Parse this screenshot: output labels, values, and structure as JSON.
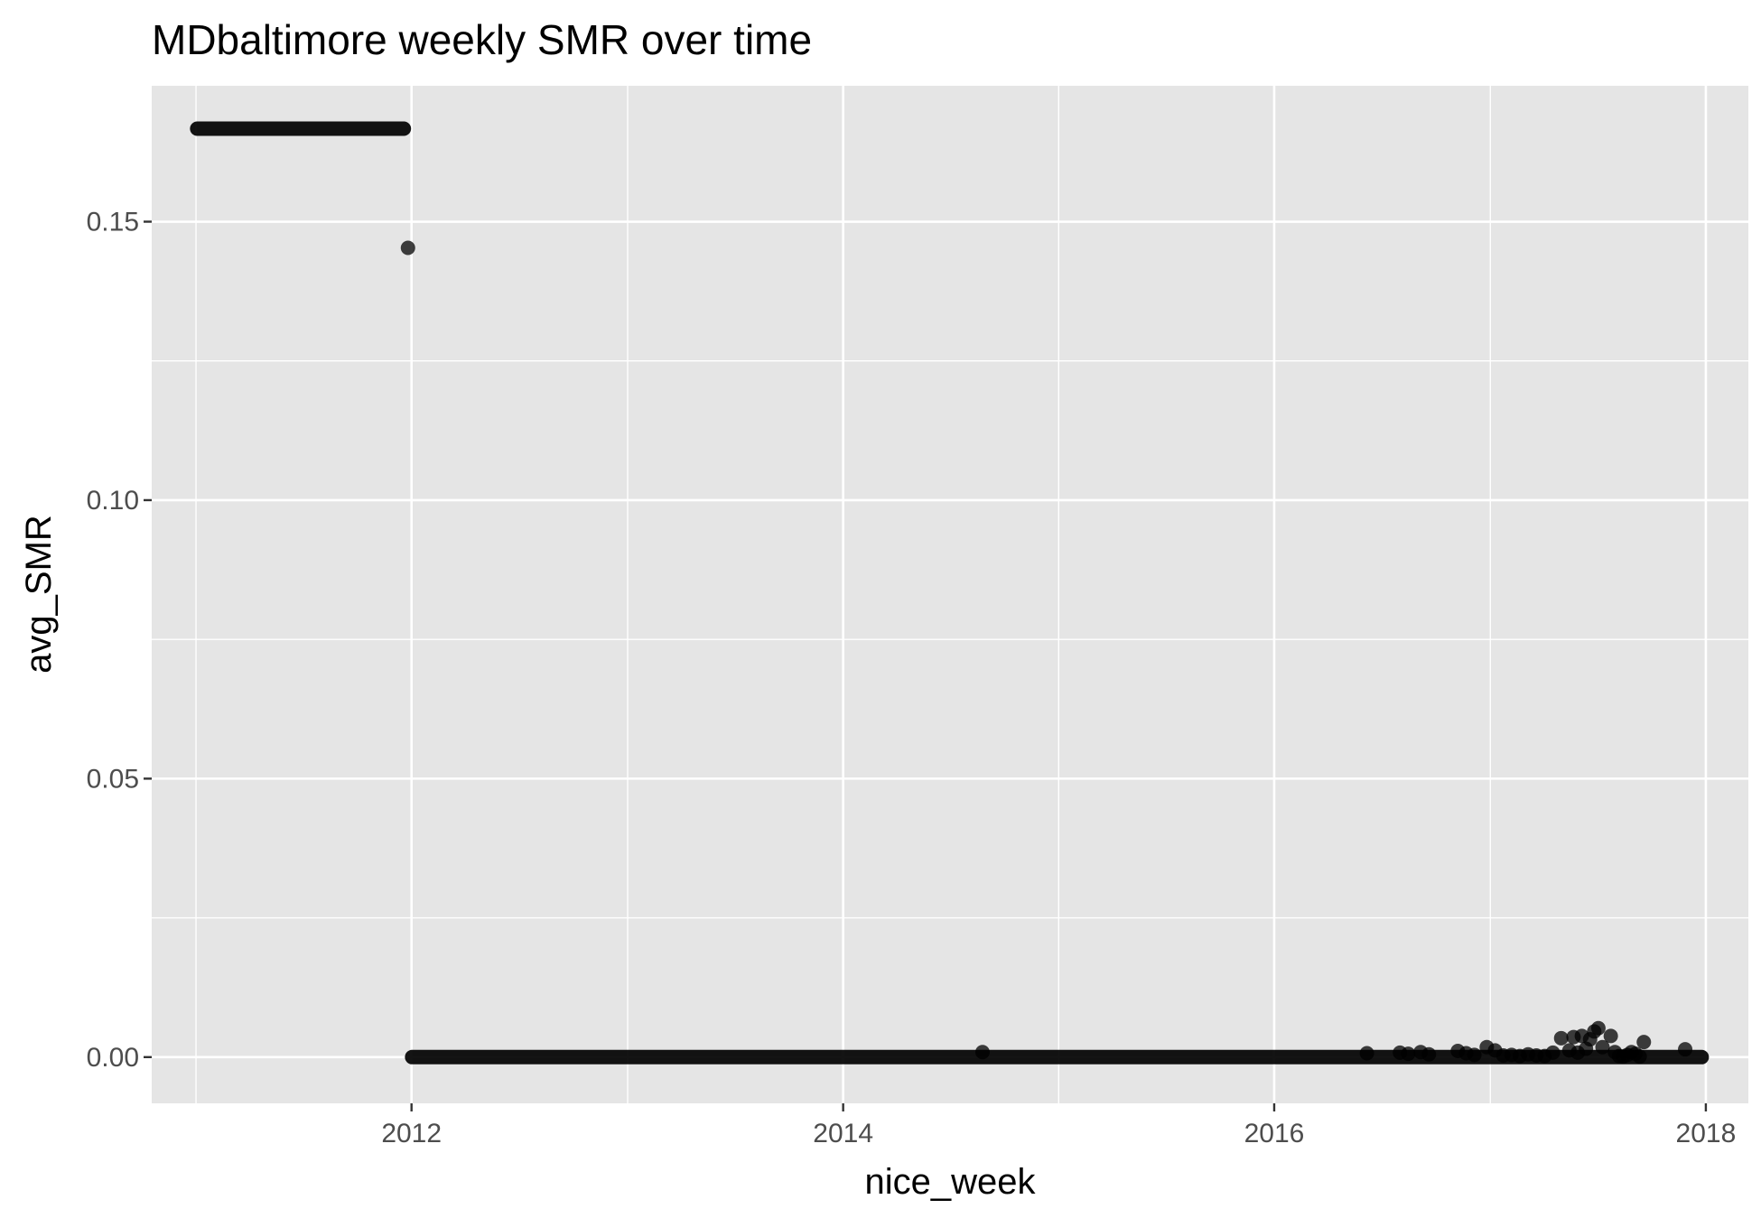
{
  "chart_data": {
    "type": "scatter",
    "title": "MDbaltimore weekly SMR over time",
    "xlabel": "nice_week",
    "ylabel": "avg_SMR",
    "x_ticks": [
      "2012",
      "2014",
      "2016",
      "2018"
    ],
    "y_ticks": [
      "0.00",
      "0.05",
      "0.10",
      "0.15"
    ],
    "xlim": [
      "2010-10-18",
      "2018-03-14"
    ],
    "ylim": [
      -0.0083,
      0.1744
    ],
    "grid": true,
    "legend": "none",
    "colors": {
      "panel": "#e5e5e5",
      "grid": "#ffffff",
      "point": "#000000",
      "point_opacity": 0.75
    },
    "segments": [
      {
        "from": "2011-01-03",
        "to": "2011-12-19",
        "y": 0.1667
      },
      {
        "from": "2012-01-02",
        "to": "2017-12-25",
        "y": 0.0
      }
    ],
    "points": [
      {
        "x": "2011-12-26",
        "y": 0.1453
      },
      {
        "x": "2014-08-25",
        "y": 0.0009
      },
      {
        "x": "2016-06-06",
        "y": 0.0007
      },
      {
        "x": "2016-08-01",
        "y": 0.0008
      },
      {
        "x": "2016-08-15",
        "y": 0.0006
      },
      {
        "x": "2016-09-05",
        "y": 0.0009
      },
      {
        "x": "2016-09-19",
        "y": 0.0005
      },
      {
        "x": "2016-11-07",
        "y": 0.0011
      },
      {
        "x": "2016-11-21",
        "y": 0.0007
      },
      {
        "x": "2016-12-05",
        "y": 0.0004
      },
      {
        "x": "2016-12-26",
        "y": 0.0018
      },
      {
        "x": "2017-01-09",
        "y": 0.0012
      },
      {
        "x": "2017-01-23",
        "y": 0.0003
      },
      {
        "x": "2017-02-06",
        "y": 0.0004
      },
      {
        "x": "2017-02-20",
        "y": 0.0002
      },
      {
        "x": "2017-03-06",
        "y": 0.0005
      },
      {
        "x": "2017-03-20",
        "y": 0.0003
      },
      {
        "x": "2017-04-03",
        "y": 0.0002
      },
      {
        "x": "2017-04-17",
        "y": 0.0008
      },
      {
        "x": "2017-05-01",
        "y": 0.0034
      },
      {
        "x": "2017-05-15",
        "y": 0.0012
      },
      {
        "x": "2017-05-22",
        "y": 0.0036
      },
      {
        "x": "2017-05-29",
        "y": 0.0008
      },
      {
        "x": "2017-06-05",
        "y": 0.0038
      },
      {
        "x": "2017-06-12",
        "y": 0.0015
      },
      {
        "x": "2017-06-19",
        "y": 0.0032
      },
      {
        "x": "2017-06-26",
        "y": 0.0046
      },
      {
        "x": "2017-07-03",
        "y": 0.0052
      },
      {
        "x": "2017-07-10",
        "y": 0.0018
      },
      {
        "x": "2017-07-24",
        "y": 0.0038
      },
      {
        "x": "2017-07-31",
        "y": 0.0009
      },
      {
        "x": "2017-08-07",
        "y": 0.0002
      },
      {
        "x": "2017-08-14",
        "y": 0.0001
      },
      {
        "x": "2017-08-21",
        "y": 0.0004
      },
      {
        "x": "2017-08-28",
        "y": 0.0009
      },
      {
        "x": "2017-09-04",
        "y": 0.0006
      },
      {
        "x": "2017-09-11",
        "y": 0.0001
      },
      {
        "x": "2017-09-18",
        "y": 0.0027
      },
      {
        "x": "2017-11-27",
        "y": 0.0014
      }
    ]
  }
}
